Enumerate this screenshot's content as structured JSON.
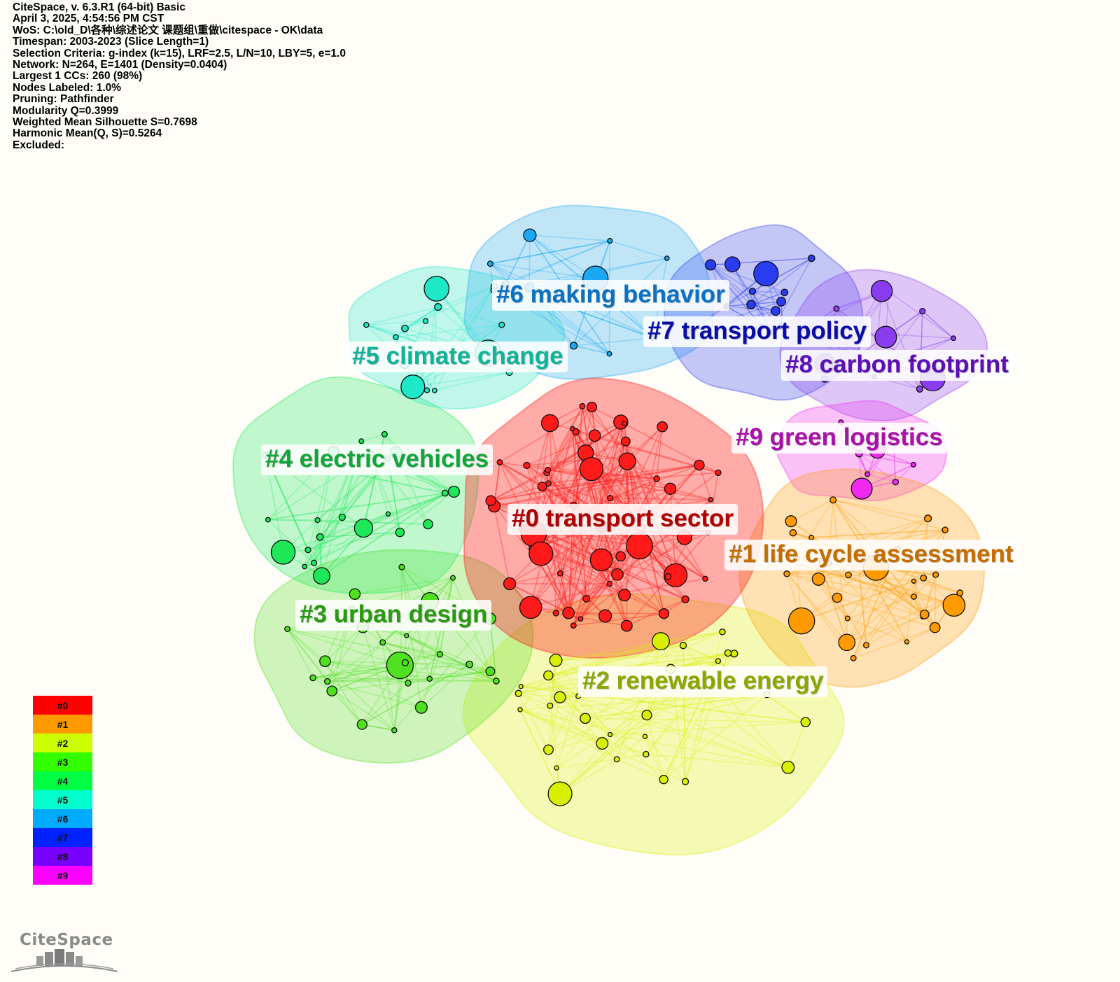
{
  "header": {
    "lines": [
      "CiteSpace, v. 6.3.R1 (64-bit) Basic",
      "April 3, 2025, 4:54:56 PM CST",
      "WoS: C:\\old_D\\各种\\综述论文 课题组\\重做\\citespace - OK\\data",
      "Timespan: 2003-2023 (Slice Length=1)",
      "Selection Criteria: g-index (k=15), LRF=2.5, L/N=10, LBY=5, e=1.0",
      "Network: N=264, E=1401 (Density=0.0404)",
      "Largest 1 CCs: 260 (98%)",
      "Nodes Labeled: 1.0%",
      "Pruning: Pathfinder",
      "Modularity Q=0.3999",
      "Weighted Mean Silhouette S=0.7698",
      "Harmonic Mean(Q, S)=0.5264",
      "Excluded:"
    ]
  },
  "clusters": [
    {
      "id": "#0",
      "label": "#0 transport sector",
      "color": "#ff1a1a",
      "label_color": "#b00000"
    },
    {
      "id": "#1",
      "label": "#1 life cycle assessment",
      "color": "#ff9a00",
      "label_color": "#c66d00"
    },
    {
      "id": "#2",
      "label": "#2 renewable energy",
      "color": "#d8f000",
      "label_color": "#8aa800"
    },
    {
      "id": "#3",
      "label": "#3 urban design",
      "color": "#4fe020",
      "label_color": "#2a9a12"
    },
    {
      "id": "#4",
      "label": "#4 electric vehicles",
      "color": "#1ee85a",
      "label_color": "#10a63a"
    },
    {
      "id": "#5",
      "label": "#5 climate change",
      "color": "#1fe8c8",
      "label_color": "#10b49a"
    },
    {
      "id": "#6",
      "label": "#6 making behavior",
      "color": "#1aa8f5",
      "label_color": "#0a72c4"
    },
    {
      "id": "#7",
      "label": "#7 transport policy",
      "color": "#2a3cf0",
      "label_color": "#0a0ca8"
    },
    {
      "id": "#8",
      "label": "#8 carbon footprint",
      "color": "#8a3cf0",
      "label_color": "#5a10b4"
    },
    {
      "id": "#9",
      "label": "#9 green logistics",
      "color": "#f028f0",
      "label_color": "#a812a8"
    }
  ],
  "legend": [
    "#0",
    "#1",
    "#2",
    "#3",
    "#4",
    "#5",
    "#6",
    "#7",
    "#8",
    "#9"
  ],
  "legend_colors": [
    "#ff0000",
    "#ff9900",
    "#ccff00",
    "#33ff00",
    "#00ff44",
    "#00ffcc",
    "#00aaff",
    "#0022ff",
    "#7700ff",
    "#ff00ff"
  ],
  "logo": {
    "text": "CiteSpace"
  }
}
